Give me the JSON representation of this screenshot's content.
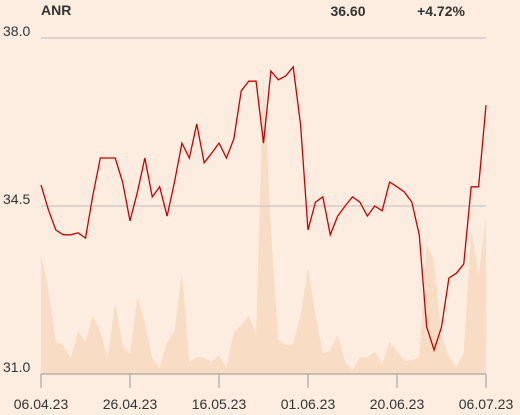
{
  "chart_data": {
    "type": "line",
    "title": "ANR",
    "price": "36.60",
    "change": "+4.72%",
    "change_color": "#11a011",
    "categories": [
      "06.04.23",
      null,
      null,
      null,
      null,
      null,
      null,
      null,
      null,
      null,
      null,
      null,
      "26.04.23",
      null,
      null,
      null,
      null,
      null,
      null,
      null,
      null,
      null,
      null,
      null,
      "16.05.23",
      null,
      null,
      null,
      null,
      null,
      null,
      null,
      null,
      null,
      null,
      null,
      "01.06.23",
      null,
      null,
      null,
      null,
      null,
      null,
      null,
      null,
      null,
      null,
      null,
      "20.06.23",
      null,
      null,
      null,
      null,
      null,
      null,
      null,
      null,
      null,
      null,
      null,
      "06.07.23"
    ],
    "series": [
      {
        "name": "Price",
        "color": "#cc0000",
        "values": [
          34.94,
          34.42,
          34.0,
          33.9,
          33.9,
          33.94,
          33.83,
          34.73,
          35.5,
          35.5,
          35.5,
          35.0,
          34.19,
          34.79,
          35.5,
          34.69,
          34.9,
          34.29,
          35.0,
          35.81,
          35.5,
          36.21,
          35.4,
          35.6,
          35.81,
          35.5,
          35.9,
          36.9,
          37.1,
          37.1,
          35.81,
          37.31,
          37.13,
          37.21,
          37.4,
          36.19,
          34.0,
          34.58,
          34.69,
          33.9,
          34.29,
          34.5,
          34.69,
          34.58,
          34.29,
          34.5,
          34.4,
          35.0,
          34.9,
          34.79,
          34.58,
          33.9,
          31.98,
          31.5,
          31.98,
          33.0,
          33.1,
          33.29,
          34.9,
          34.9,
          36.6
        ]
      },
      {
        "name": "Volume",
        "color": "#f8dcc3",
        "values": [
          119,
          84,
          32,
          29,
          16,
          42,
          32,
          58,
          42,
          16,
          71,
          29,
          20,
          77,
          51,
          16,
          6,
          32,
          42,
          101,
          12,
          17,
          16,
          12,
          19,
          6,
          42,
          49,
          58,
          40,
          299,
          144,
          34,
          29,
          30,
          58,
          106,
          60,
          20,
          24,
          39,
          12,
          4,
          17,
          17,
          22,
          10,
          32,
          22,
          13,
          14,
          17,
          129,
          112,
          38,
          17,
          7,
          21,
          144,
          99,
          156
        ]
      }
    ],
    "ylim": [
      31.0,
      38.0
    ],
    "yticks": [
      {
        "value": 38,
        "label": "38.0"
      },
      34.5,
      {
        "value": 31,
        "label": "31.0"
      }
    ],
    "grid": true
  }
}
